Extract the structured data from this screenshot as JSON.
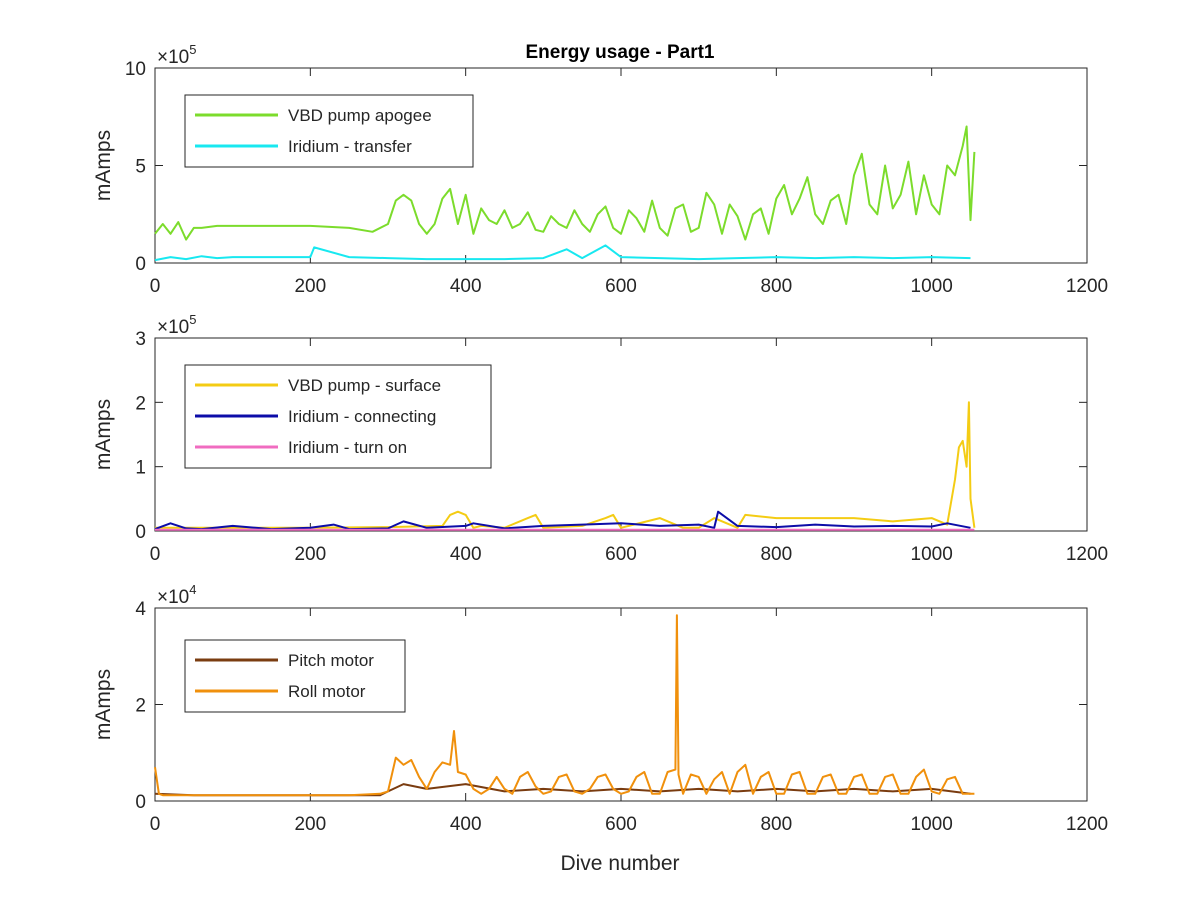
{
  "figure": {
    "title": "Energy usage - Part1",
    "xlabel": "Dive number"
  },
  "chart_data": [
    {
      "type": "line",
      "title": "Energy usage - Part1",
      "xlabel": "",
      "ylabel": "mAmps",
      "xlim": [
        0,
        1200
      ],
      "ylim": [
        0,
        1000000
      ],
      "xticks": [
        0,
        200,
        400,
        600,
        800,
        1000,
        1200
      ],
      "yticks": [
        0,
        500000,
        1000000
      ],
      "ytick_labels": [
        "0",
        "5",
        "10"
      ],
      "exponent": {
        "base": "×10",
        "power": "5"
      },
      "legend": "top-left",
      "series": [
        {
          "name": "VBD pump apogee",
          "color": "#7cdc2c",
          "x": [
            0,
            10,
            20,
            30,
            40,
            50,
            60,
            80,
            100,
            150,
            200,
            250,
            280,
            300,
            310,
            320,
            330,
            340,
            350,
            360,
            370,
            380,
            390,
            400,
            410,
            420,
            430,
            440,
            450,
            460,
            470,
            480,
            490,
            500,
            510,
            520,
            530,
            540,
            550,
            560,
            570,
            580,
            590,
            600,
            610,
            620,
            630,
            640,
            650,
            660,
            670,
            680,
            690,
            700,
            710,
            720,
            730,
            740,
            750,
            760,
            770,
            780,
            790,
            800,
            810,
            820,
            830,
            840,
            850,
            860,
            870,
            880,
            890,
            900,
            910,
            920,
            930,
            940,
            950,
            960,
            970,
            980,
            990,
            1000,
            1010,
            1020,
            1030,
            1040,
            1045,
            1050,
            1055
          ],
          "y": [
            150000,
            200000,
            150000,
            210000,
            120000,
            180000,
            180000,
            190000,
            190000,
            190000,
            190000,
            180000,
            160000,
            200000,
            320000,
            350000,
            320000,
            200000,
            150000,
            200000,
            330000,
            380000,
            200000,
            350000,
            150000,
            280000,
            220000,
            200000,
            270000,
            180000,
            200000,
            260000,
            170000,
            160000,
            240000,
            200000,
            180000,
            270000,
            200000,
            160000,
            250000,
            290000,
            180000,
            150000,
            270000,
            230000,
            160000,
            320000,
            180000,
            140000,
            280000,
            300000,
            160000,
            180000,
            360000,
            300000,
            150000,
            300000,
            240000,
            120000,
            250000,
            280000,
            150000,
            330000,
            400000,
            250000,
            330000,
            440000,
            250000,
            200000,
            320000,
            350000,
            200000,
            450000,
            560000,
            300000,
            250000,
            500000,
            280000,
            350000,
            520000,
            250000,
            450000,
            300000,
            250000,
            500000,
            450000,
            600000,
            700000,
            220000,
            570000
          ]
        },
        {
          "name": "Iridium - transfer",
          "color": "#18e8f0",
          "x": [
            0,
            20,
            40,
            60,
            80,
            100,
            150,
            200,
            205,
            250,
            300,
            350,
            400,
            450,
            500,
            530,
            550,
            580,
            600,
            650,
            700,
            750,
            800,
            850,
            900,
            950,
            1000,
            1050
          ],
          "y": [
            15000,
            30000,
            20000,
            35000,
            25000,
            30000,
            30000,
            30000,
            80000,
            30000,
            25000,
            20000,
            20000,
            20000,
            25000,
            70000,
            25000,
            90000,
            30000,
            25000,
            20000,
            25000,
            30000,
            25000,
            30000,
            25000,
            30000,
            25000
          ]
        }
      ]
    },
    {
      "type": "line",
      "xlabel": "",
      "ylabel": "mAmps",
      "xlim": [
        0,
        1200
      ],
      "ylim": [
        0,
        300000
      ],
      "xticks": [
        0,
        200,
        400,
        600,
        800,
        1000,
        1200
      ],
      "yticks": [
        0,
        100000,
        200000,
        300000
      ],
      "ytick_labels": [
        "0",
        "1",
        "2",
        "3"
      ],
      "exponent": {
        "base": "×10",
        "power": "5"
      },
      "legend": "top-left",
      "series": [
        {
          "name": "VBD pump - surface",
          "color": "#f4cc14",
          "x": [
            0,
            50,
            100,
            200,
            300,
            370,
            380,
            390,
            400,
            410,
            420,
            450,
            480,
            490,
            500,
            550,
            580,
            590,
            600,
            650,
            680,
            700,
            720,
            750,
            760,
            800,
            850,
            900,
            950,
            1000,
            1020,
            1030,
            1035,
            1040,
            1045,
            1048,
            1050,
            1055
          ],
          "y": [
            5000,
            5000,
            5000,
            5000,
            6000,
            8000,
            25000,
            30000,
            25000,
            5000,
            8000,
            5000,
            20000,
            25000,
            5000,
            8000,
            20000,
            25000,
            5000,
            20000,
            5000,
            5000,
            20000,
            5000,
            25000,
            20000,
            20000,
            20000,
            15000,
            20000,
            10000,
            80000,
            130000,
            140000,
            100000,
            200000,
            50000,
            5000
          ]
        },
        {
          "name": "Iridium - connecting",
          "color": "#0c0ca8",
          "x": [
            0,
            20,
            40,
            60,
            100,
            150,
            200,
            230,
            250,
            300,
            320,
            350,
            400,
            410,
            450,
            500,
            550,
            600,
            650,
            700,
            720,
            725,
            750,
            800,
            850,
            900,
            950,
            1000,
            1020,
            1050
          ],
          "y": [
            3000,
            12000,
            4000,
            3000,
            8000,
            3000,
            5000,
            10000,
            3000,
            4000,
            15000,
            5000,
            8000,
            12000,
            4000,
            8000,
            10000,
            12000,
            8000,
            10000,
            5000,
            30000,
            8000,
            6000,
            10000,
            7000,
            8000,
            7000,
            12000,
            5000
          ]
        },
        {
          "name": "Iridium - turn on",
          "color": "#f06cc0",
          "x": [
            0,
            200,
            400,
            600,
            800,
            1000,
            1055
          ],
          "y": [
            2000,
            2000,
            2000,
            2000,
            2000,
            2000,
            2000
          ]
        }
      ]
    },
    {
      "type": "line",
      "xlabel": "Dive number",
      "ylabel": "mAmps",
      "xlim": [
        0,
        1200
      ],
      "ylim": [
        0,
        40000
      ],
      "xticks": [
        0,
        200,
        400,
        600,
        800,
        1000,
        1200
      ],
      "yticks": [
        0,
        20000,
        40000
      ],
      "ytick_labels": [
        "0",
        "2",
        "4"
      ],
      "exponent": {
        "base": "×10",
        "power": "4"
      },
      "legend": "top-left",
      "series": [
        {
          "name": "Pitch motor",
          "color": "#7a3c10",
          "x": [
            0,
            50,
            100,
            150,
            200,
            250,
            290,
            300,
            320,
            350,
            400,
            450,
            500,
            550,
            600,
            650,
            700,
            750,
            800,
            850,
            900,
            950,
            1000,
            1050
          ],
          "y": [
            1500,
            1200,
            1200,
            1200,
            1200,
            1200,
            1200,
            2000,
            3500,
            2500,
            3500,
            2000,
            2500,
            2000,
            2500,
            2000,
            2500,
            2000,
            2500,
            2000,
            2500,
            2000,
            2500,
            1500
          ]
        },
        {
          "name": "Roll motor",
          "color": "#f0900c",
          "x": [
            0,
            5,
            10,
            50,
            100,
            150,
            200,
            250,
            290,
            300,
            310,
            320,
            330,
            340,
            350,
            360,
            370,
            380,
            385,
            390,
            400,
            410,
            420,
            430,
            440,
            450,
            460,
            470,
            480,
            490,
            500,
            510,
            520,
            530,
            540,
            550,
            560,
            570,
            580,
            590,
            600,
            610,
            620,
            630,
            640,
            650,
            660,
            670,
            672,
            674,
            680,
            690,
            700,
            710,
            720,
            730,
            740,
            750,
            760,
            770,
            780,
            790,
            800,
            810,
            820,
            830,
            840,
            850,
            860,
            870,
            880,
            890,
            900,
            910,
            920,
            930,
            940,
            950,
            960,
            970,
            980,
            990,
            1000,
            1010,
            1020,
            1030,
            1040,
            1050,
            1055
          ],
          "y": [
            7000,
            1500,
            1200,
            1200,
            1200,
            1200,
            1200,
            1200,
            1500,
            2000,
            9000,
            7500,
            8500,
            5000,
            2500,
            6000,
            8000,
            7500,
            14500,
            6000,
            5500,
            2500,
            1500,
            2500,
            5000,
            2500,
            1500,
            5000,
            6000,
            3000,
            1500,
            2000,
            5000,
            5500,
            2000,
            1500,
            2500,
            5000,
            5500,
            2500,
            1500,
            2000,
            5000,
            6000,
            1500,
            1500,
            6000,
            6500,
            38500,
            5500,
            1500,
            5500,
            5000,
            1500,
            4500,
            6000,
            1500,
            6000,
            7500,
            1500,
            5000,
            6000,
            1500,
            1500,
            5500,
            6000,
            1500,
            1500,
            5000,
            5500,
            1500,
            1500,
            5000,
            5500,
            1500,
            1500,
            5000,
            5500,
            1500,
            1500,
            5000,
            6500,
            2000,
            1500,
            4500,
            5000,
            1500,
            1500,
            1500
          ]
        }
      ]
    }
  ]
}
